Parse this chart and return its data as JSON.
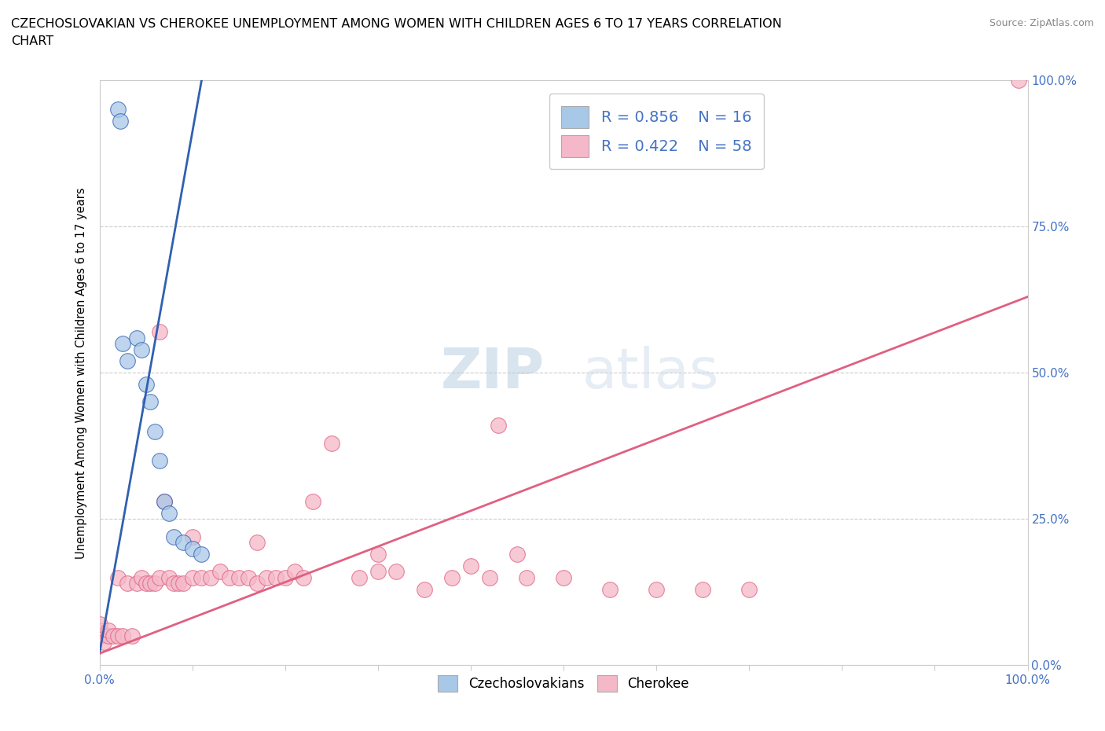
{
  "title_line1": "CZECHOSLOVAKIAN VS CHEROKEE UNEMPLOYMENT AMONG WOMEN WITH CHILDREN AGES 6 TO 17 YEARS CORRELATION",
  "title_line2": "CHART",
  "source_text": "Source: ZipAtlas.com",
  "ylabel": "Unemployment Among Women with Children Ages 6 to 17 years",
  "xlim": [
    0,
    1.0
  ],
  "ylim": [
    0,
    1.0
  ],
  "ytick_labels": [
    "0.0%",
    "25.0%",
    "50.0%",
    "75.0%",
    "100.0%"
  ],
  "ytick_values": [
    0,
    0.25,
    0.5,
    0.75,
    1.0
  ],
  "color_czech": "#a8c8e8",
  "color_cherokee": "#f4b8c8",
  "color_czech_line": "#3060b0",
  "color_cherokee_line": "#e06080",
  "watermark_zip": "ZIP",
  "watermark_atlas": "atlas",
  "czech_x": [
    0.02,
    0.022,
    0.025,
    0.03,
    0.04,
    0.045,
    0.05,
    0.055,
    0.06,
    0.065,
    0.07,
    0.075,
    0.08,
    0.09,
    0.1,
    0.11
  ],
  "czech_y": [
    0.95,
    0.93,
    0.55,
    0.52,
    0.56,
    0.54,
    0.48,
    0.45,
    0.4,
    0.35,
    0.28,
    0.26,
    0.22,
    0.21,
    0.2,
    0.19
  ],
  "cherokee_x": [
    0.0,
    0.0,
    0.0,
    0.005,
    0.01,
    0.01,
    0.015,
    0.02,
    0.02,
    0.025,
    0.03,
    0.035,
    0.04,
    0.045,
    0.05,
    0.055,
    0.06,
    0.065,
    0.065,
    0.07,
    0.075,
    0.08,
    0.085,
    0.09,
    0.1,
    0.1,
    0.11,
    0.12,
    0.13,
    0.14,
    0.15,
    0.16,
    0.17,
    0.17,
    0.18,
    0.19,
    0.2,
    0.21,
    0.22,
    0.23,
    0.25,
    0.28,
    0.3,
    0.3,
    0.32,
    0.35,
    0.38,
    0.4,
    0.42,
    0.43,
    0.45,
    0.46,
    0.5,
    0.55,
    0.6,
    0.65,
    0.7,
    0.99
  ],
  "cherokee_y": [
    0.05,
    0.06,
    0.07,
    0.04,
    0.05,
    0.06,
    0.05,
    0.05,
    0.15,
    0.05,
    0.14,
    0.05,
    0.14,
    0.15,
    0.14,
    0.14,
    0.14,
    0.57,
    0.15,
    0.28,
    0.15,
    0.14,
    0.14,
    0.14,
    0.22,
    0.15,
    0.15,
    0.15,
    0.16,
    0.15,
    0.15,
    0.15,
    0.14,
    0.21,
    0.15,
    0.15,
    0.15,
    0.16,
    0.15,
    0.28,
    0.38,
    0.15,
    0.16,
    0.19,
    0.16,
    0.13,
    0.15,
    0.17,
    0.15,
    0.41,
    0.19,
    0.15,
    0.15,
    0.13,
    0.13,
    0.13,
    0.13,
    1.0
  ],
  "czech_trendline_x": [
    0.0,
    0.11
  ],
  "czech_trendline_y": [
    0.02,
    1.0
  ],
  "cherokee_trendline_x": [
    0.0,
    1.0
  ],
  "cherokee_trendline_y": [
    0.02,
    0.63
  ]
}
